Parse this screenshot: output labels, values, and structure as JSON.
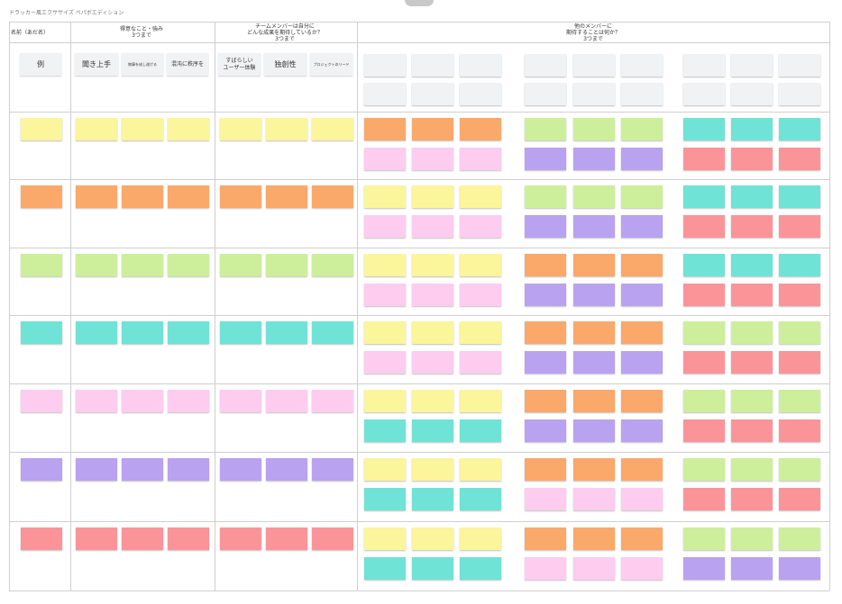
{
  "board": {
    "title": "ドラッカー風エクササイズ ペパボエディション"
  },
  "headers": [
    {
      "text": "名前（あだ名）"
    },
    {
      "text": "得意なこと・強み\n3つまで"
    },
    {
      "text": "チームメンバーは自分に\nどんな成果を期待しているか？\n3つまで"
    },
    {
      "text": "他のメンバーに\n期待することは何か？\n3つまで"
    }
  ],
  "example_row": {
    "name": "例",
    "strengths": [
      "聞き上手",
      "物事を成し遂げる",
      "混沌に秩序を"
    ],
    "expected": [
      "すばらしい\nユーザー体験",
      "独創性",
      "プロジェクトのリード"
    ]
  },
  "colors": {
    "yellow": "#fbf59c",
    "orange": "#fba86b",
    "green": "#cdef9b",
    "teal": "#6fe3d6",
    "pink": "#fdccee",
    "purple": "#b9a2f0",
    "red": "#fb9498",
    "gray": "#f1f2f4"
  },
  "member_rows": [
    {
      "member_color": "yellow",
      "others_top": [
        "orange",
        "green",
        "teal"
      ],
      "others_bottom": [
        "pink",
        "purple",
        "red"
      ]
    },
    {
      "member_color": "orange",
      "others_top": [
        "yellow",
        "green",
        "teal"
      ],
      "others_bottom": [
        "pink",
        "purple",
        "red"
      ]
    },
    {
      "member_color": "green",
      "others_top": [
        "yellow",
        "orange",
        "teal"
      ],
      "others_bottom": [
        "pink",
        "purple",
        "red"
      ]
    },
    {
      "member_color": "teal",
      "others_top": [
        "yellow",
        "orange",
        "green"
      ],
      "others_bottom": [
        "pink",
        "purple",
        "red"
      ]
    },
    {
      "member_color": "pink",
      "others_top": [
        "yellow",
        "orange",
        "green"
      ],
      "others_bottom": [
        "teal",
        "purple",
        "red"
      ]
    },
    {
      "member_color": "purple",
      "others_top": [
        "yellow",
        "orange",
        "green"
      ],
      "others_bottom": [
        "teal",
        "pink",
        "red"
      ]
    },
    {
      "member_color": "red",
      "others_top": [
        "yellow",
        "orange",
        "green"
      ],
      "others_bottom": [
        "teal",
        "pink",
        "purple"
      ]
    }
  ]
}
